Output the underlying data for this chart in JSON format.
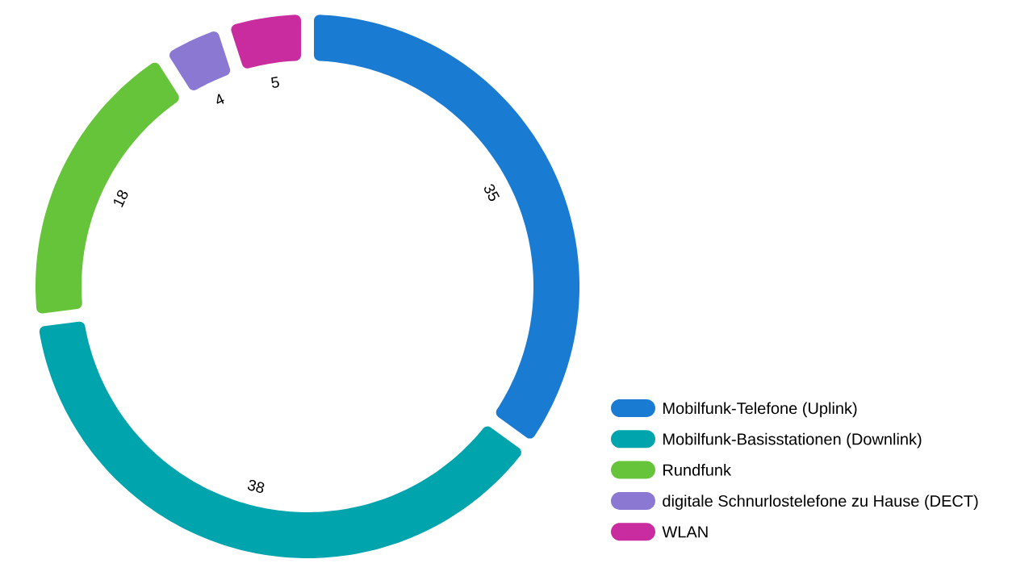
{
  "chart_data": {
    "type": "donut",
    "categories": [
      "Mobilfunk-Telefone (Uplink)",
      "Mobilfunk-Basisstationen (Downlink)",
      "Rundfunk",
      "digitale Schnurlostelefone zu Hause (DECT)",
      "WLAN"
    ],
    "values": [
      35,
      38,
      18,
      4,
      5
    ],
    "colors": [
      "#1a7bd3",
      "#00a4ad",
      "#66c43a",
      "#8a78d3",
      "#c82c9f"
    ],
    "data_labels": true,
    "legend": "bottom right"
  }
}
